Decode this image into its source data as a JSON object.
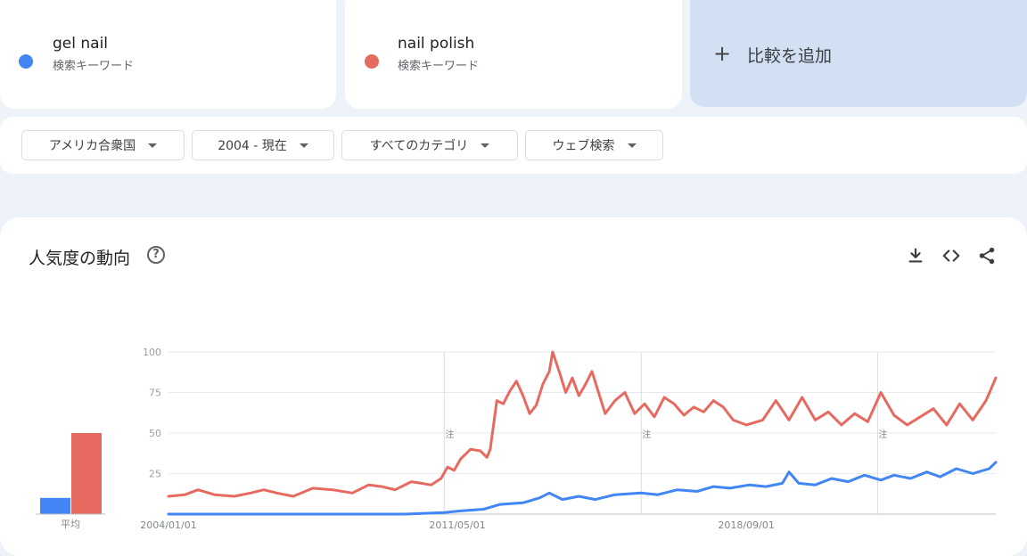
{
  "terms": [
    {
      "name": "gel nail",
      "type": "検索キーワード",
      "color": "#4285f4"
    },
    {
      "name": "nail polish",
      "type": "検索キーワード",
      "color": "#e66a5f"
    }
  ],
  "compare": {
    "plus": "+",
    "label": "比較を追加"
  },
  "filters": {
    "region": "アメリカ合衆国",
    "period": "2004 - 現在",
    "category": "すべてのカテゴリ",
    "search_type": "ウェブ検索"
  },
  "section": {
    "title": "人気度の動向",
    "help_symbol": "?"
  },
  "toolbar_icons": [
    "download-icon",
    "embed-code-icon",
    "share-icon"
  ],
  "chart_data": {
    "type": "line",
    "y_ticks": [
      100,
      75,
      50,
      25
    ],
    "ylim": [
      0,
      100
    ],
    "x_tick_labels": [
      "2004/01/01",
      "2011/05/01",
      "2018/09/01"
    ],
    "annotation_label": "注",
    "annotation_dates": [
      "2011/01",
      "2016/01",
      "2022/01"
    ],
    "average_label": "平均",
    "averages": {
      "gel nail": 10,
      "nail polish": 50
    },
    "colors": {
      "gel nail": "#4285f4",
      "nail polish": "#e66a5f"
    },
    "series": [
      {
        "name": "nail polish",
        "points": [
          [
            "2004/01",
            11
          ],
          [
            "2004/06",
            12
          ],
          [
            "2004/10",
            15
          ],
          [
            "2005/03",
            12
          ],
          [
            "2005/09",
            11
          ],
          [
            "2006/02",
            13
          ],
          [
            "2006/06",
            15
          ],
          [
            "2006/10",
            13
          ],
          [
            "2007/03",
            11
          ],
          [
            "2007/09",
            16
          ],
          [
            "2008/03",
            15
          ],
          [
            "2008/09",
            13
          ],
          [
            "2009/02",
            18
          ],
          [
            "2009/06",
            17
          ],
          [
            "2009/10",
            15
          ],
          [
            "2010/03",
            20
          ],
          [
            "2010/06",
            19
          ],
          [
            "2010/09",
            18
          ],
          [
            "2010/12",
            22
          ],
          [
            "2011/02",
            29
          ],
          [
            "2011/04",
            27
          ],
          [
            "2011/06",
            34
          ],
          [
            "2011/09",
            40
          ],
          [
            "2011/12",
            39
          ],
          [
            "2012/02",
            35
          ],
          [
            "2012/03",
            40
          ],
          [
            "2012/04",
            55
          ],
          [
            "2012/05",
            70
          ],
          [
            "2012/07",
            68
          ],
          [
            "2012/09",
            76
          ],
          [
            "2012/11",
            82
          ],
          [
            "2013/01",
            73
          ],
          [
            "2013/03",
            62
          ],
          [
            "2013/05",
            67
          ],
          [
            "2013/07",
            80
          ],
          [
            "2013/09",
            88
          ],
          [
            "2013/10",
            100
          ],
          [
            "2013/12",
            88
          ],
          [
            "2014/02",
            75
          ],
          [
            "2014/04",
            84
          ],
          [
            "2014/06",
            73
          ],
          [
            "2014/08",
            80
          ],
          [
            "2014/10",
            88
          ],
          [
            "2014/12",
            75
          ],
          [
            "2015/02",
            62
          ],
          [
            "2015/05",
            70
          ],
          [
            "2015/08",
            75
          ],
          [
            "2015/11",
            62
          ],
          [
            "2016/02",
            68
          ],
          [
            "2016/05",
            60
          ],
          [
            "2016/08",
            72
          ],
          [
            "2016/11",
            68
          ],
          [
            "2017/02",
            61
          ],
          [
            "2017/05",
            66
          ],
          [
            "2017/08",
            63
          ],
          [
            "2017/11",
            70
          ],
          [
            "2018/02",
            66
          ],
          [
            "2018/05",
            58
          ],
          [
            "2018/09",
            55
          ],
          [
            "2019/02",
            58
          ],
          [
            "2019/06",
            70
          ],
          [
            "2019/10",
            58
          ],
          [
            "2020/02",
            72
          ],
          [
            "2020/06",
            58
          ],
          [
            "2020/10",
            63
          ],
          [
            "2021/02",
            55
          ],
          [
            "2021/06",
            62
          ],
          [
            "2021/10",
            57
          ],
          [
            "2022/02",
            75
          ],
          [
            "2022/06",
            61
          ],
          [
            "2022/10",
            55
          ],
          [
            "2023/02",
            60
          ],
          [
            "2023/06",
            65
          ],
          [
            "2023/10",
            55
          ],
          [
            "2024/02",
            68
          ],
          [
            "2024/06",
            58
          ],
          [
            "2024/10",
            70
          ],
          [
            "2025/01",
            84
          ]
        ]
      },
      {
        "name": "gel nail",
        "points": [
          [
            "2004/01",
            0
          ],
          [
            "2005/01",
            0
          ],
          [
            "2006/01",
            0
          ],
          [
            "2007/01",
            0
          ],
          [
            "2008/01",
            0
          ],
          [
            "2009/01",
            0
          ],
          [
            "2010/01",
            0
          ],
          [
            "2011/01",
            1
          ],
          [
            "2011/06",
            2
          ],
          [
            "2012/01",
            3
          ],
          [
            "2012/06",
            6
          ],
          [
            "2013/01",
            7
          ],
          [
            "2013/06",
            10
          ],
          [
            "2013/09",
            13
          ],
          [
            "2014/01",
            9
          ],
          [
            "2014/06",
            11
          ],
          [
            "2014/11",
            9
          ],
          [
            "2015/05",
            12
          ],
          [
            "2016/01",
            13
          ],
          [
            "2016/06",
            12
          ],
          [
            "2016/12",
            15
          ],
          [
            "2017/06",
            14
          ],
          [
            "2017/11",
            17
          ],
          [
            "2018/04",
            16
          ],
          [
            "2018/10",
            18
          ],
          [
            "2019/03",
            17
          ],
          [
            "2019/08",
            19
          ],
          [
            "2019/10",
            26
          ],
          [
            "2020/01",
            19
          ],
          [
            "2020/06",
            18
          ],
          [
            "2020/11",
            22
          ],
          [
            "2021/04",
            20
          ],
          [
            "2021/09",
            24
          ],
          [
            "2022/02",
            21
          ],
          [
            "2022/06",
            24
          ],
          [
            "2022/11",
            22
          ],
          [
            "2023/04",
            26
          ],
          [
            "2023/08",
            23
          ],
          [
            "2024/01",
            28
          ],
          [
            "2024/06",
            25
          ],
          [
            "2024/11",
            28
          ],
          [
            "2025/01",
            32
          ]
        ]
      }
    ]
  }
}
